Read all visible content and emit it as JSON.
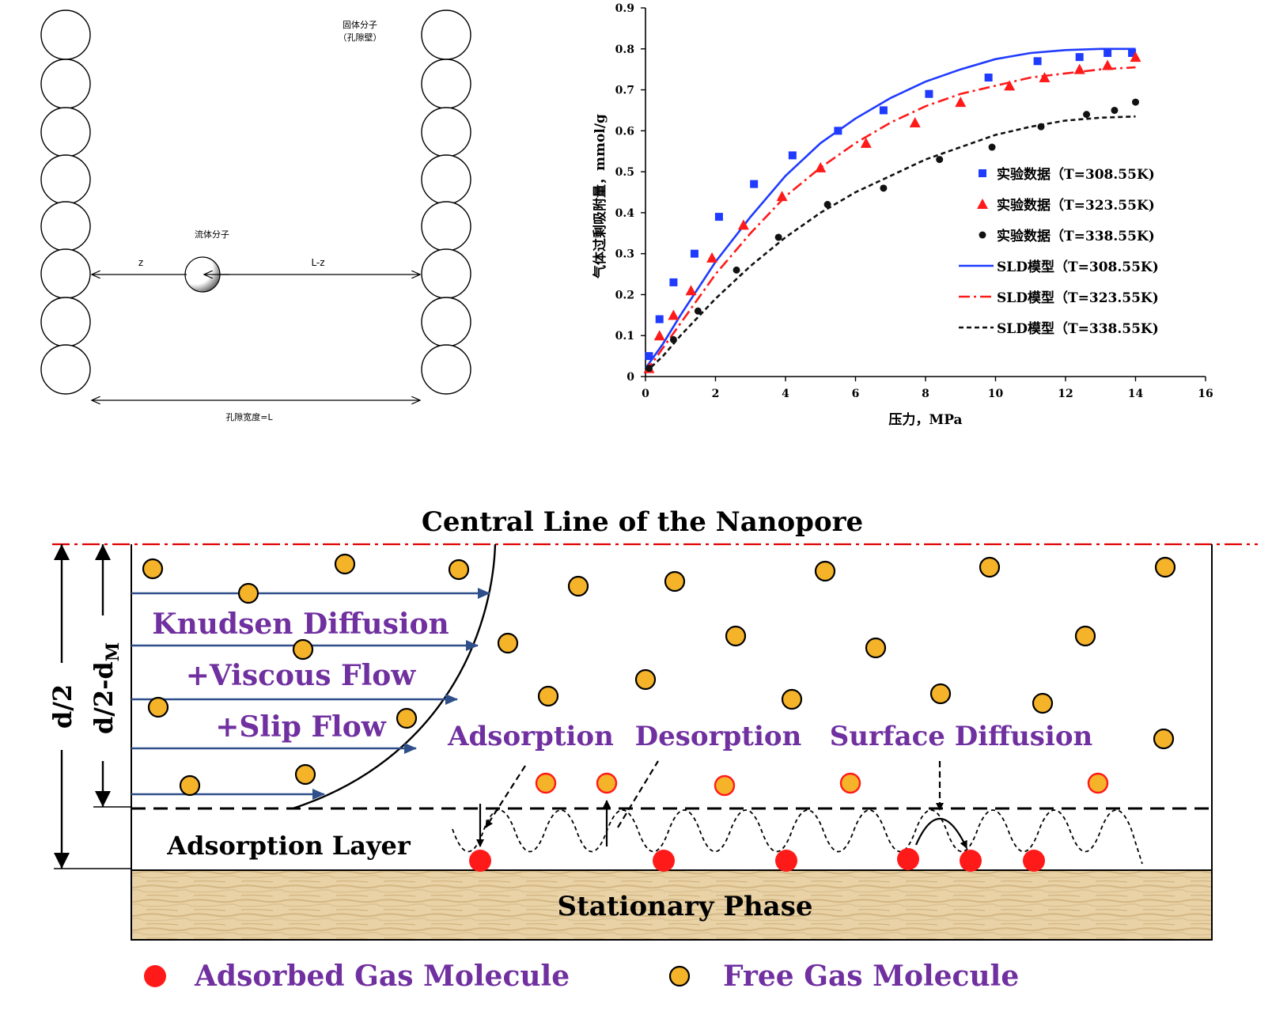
{
  "pore_schematic": {
    "solid_label_line1": "固体分子",
    "solid_label_line2": "（孔隙壁）",
    "fluid_label": "流体分子",
    "z_label": "z",
    "lz_label": "L-z",
    "width_label": "孔隙宽度=L"
  },
  "chart_data": {
    "type": "scatter",
    "title": "",
    "xlabel": "压力，MPa",
    "ylabel": "气体过剩吸附量，mmol/g",
    "xlim": [
      0,
      16
    ],
    "ylim": [
      0,
      0.9
    ],
    "xticks": [
      "0",
      "2",
      "4",
      "6",
      "8",
      "10",
      "12",
      "14",
      "16"
    ],
    "yticks": [
      "0",
      "0.1",
      "0.2",
      "0.3",
      "0.4",
      "0.5",
      "0.6",
      "0.7",
      "0.8",
      "0.9"
    ],
    "grid": false,
    "legend_position": "bottom-right",
    "series": [
      {
        "name": "实验数据（T=308.55K)",
        "kind": "scatter",
        "marker": "square",
        "color": "#1f3bff",
        "x": [
          0.1,
          0.4,
          0.8,
          1.4,
          2.1,
          3.1,
          4.2,
          5.5,
          6.8,
          8.1,
          9.8,
          11.2,
          12.4,
          13.2,
          13.9
        ],
        "y": [
          0.05,
          0.14,
          0.23,
          0.3,
          0.39,
          0.47,
          0.54,
          0.6,
          0.65,
          0.69,
          0.73,
          0.77,
          0.78,
          0.79,
          0.79
        ]
      },
      {
        "name": "实验数据（T=323.55K)",
        "kind": "scatter",
        "marker": "triangle",
        "color": "#ff1a1a",
        "x": [
          0.1,
          0.4,
          0.8,
          1.3,
          1.9,
          2.8,
          3.9,
          5.0,
          6.3,
          7.7,
          9.0,
          10.4,
          11.4,
          12.4,
          13.2,
          14.0
        ],
        "y": [
          0.02,
          0.1,
          0.15,
          0.21,
          0.29,
          0.37,
          0.44,
          0.51,
          0.57,
          0.62,
          0.67,
          0.71,
          0.73,
          0.75,
          0.76,
          0.78
        ]
      },
      {
        "name": "实验数据（T=338.55K)",
        "kind": "scatter",
        "marker": "circle",
        "color": "#111111",
        "x": [
          0.1,
          0.8,
          1.5,
          2.6,
          3.8,
          5.2,
          6.8,
          8.4,
          9.9,
          11.3,
          12.6,
          13.4,
          14.0
        ],
        "y": [
          0.02,
          0.09,
          0.16,
          0.26,
          0.34,
          0.42,
          0.46,
          0.53,
          0.56,
          0.61,
          0.64,
          0.65,
          0.67
        ]
      },
      {
        "name": "SLD模型（T=308.55K)",
        "kind": "line",
        "dash": "solid",
        "color": "#1f3bff",
        "x": [
          0,
          0.5,
          1,
          2,
          3,
          4,
          5,
          6,
          7,
          8,
          9,
          10,
          11,
          12,
          13,
          14
        ],
        "y": [
          0.02,
          0.08,
          0.15,
          0.28,
          0.39,
          0.49,
          0.57,
          0.63,
          0.68,
          0.72,
          0.75,
          0.775,
          0.79,
          0.797,
          0.8,
          0.8
        ]
      },
      {
        "name": "SLD模型（T=323.55K)",
        "kind": "line",
        "dash": "dashdot",
        "color": "#ff1a1a",
        "x": [
          0,
          0.5,
          1,
          2,
          3,
          4,
          5,
          6,
          7,
          8,
          9,
          10,
          11,
          12,
          13,
          14
        ],
        "y": [
          0.01,
          0.07,
          0.13,
          0.25,
          0.35,
          0.44,
          0.51,
          0.57,
          0.62,
          0.66,
          0.69,
          0.71,
          0.73,
          0.74,
          0.75,
          0.755
        ]
      },
      {
        "name": "SLD模型（T=338.55K)",
        "kind": "line",
        "dash": "dashed",
        "color": "#111111",
        "x": [
          0,
          0.5,
          1,
          2,
          3,
          4,
          5,
          6,
          7,
          8,
          9,
          10,
          11,
          12,
          13,
          14
        ],
        "y": [
          0.01,
          0.05,
          0.1,
          0.19,
          0.27,
          0.34,
          0.4,
          0.45,
          0.49,
          0.53,
          0.56,
          0.59,
          0.61,
          0.625,
          0.632,
          0.635
        ]
      }
    ]
  },
  "nanopore": {
    "title": "Central Line of the Nanopore",
    "flow_line1": "Knudsen Diffusion",
    "flow_line2": "+Viscous Flow",
    "flow_line3": "+Slip Flow",
    "adsorption": "Adsorption",
    "desorption": "Desorption",
    "surface_diffusion": "Surface Diffusion",
    "adsorption_layer": "Adsorption Layer",
    "stationary_phase": "Stationary Phase",
    "d_half": "d/2",
    "d_half_minus_dm": "d/2-d",
    "d_sub": "M",
    "legend_adsorbed": "Adsorbed Gas Molecule",
    "legend_free": "Free Gas Molecule",
    "colors": {
      "adsorbed": "#ff1a1a",
      "free": "#f5b32a",
      "text_purple": "#7030a0",
      "centerline": "#e00000",
      "arrow": "#2f4f8a"
    }
  }
}
